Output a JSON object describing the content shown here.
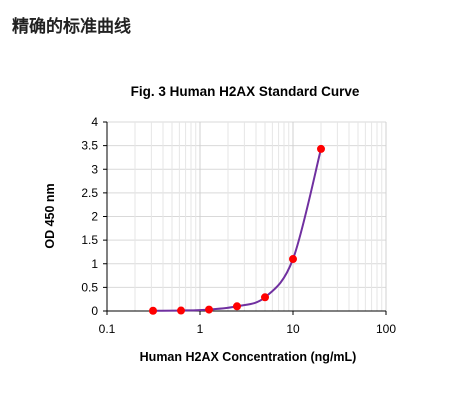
{
  "page": {
    "heading": "精确的标准曲线"
  },
  "chart_data": {
    "type": "scatter",
    "title": "Fig. 3 Human H2AX Standard Curve",
    "xlabel": "Human H2AX Concentration (ng/mL)",
    "ylabel": "OD 450 nm",
    "x_scale": "log",
    "xlim": [
      0.1,
      100
    ],
    "ylim": [
      0,
      4
    ],
    "x_ticks": [
      "0.1",
      "1",
      "10",
      "100"
    ],
    "y_ticks": [
      "0",
      "0.5",
      "1",
      "1.5",
      "2",
      "2.5",
      "3",
      "3.5",
      "4"
    ],
    "grid": true,
    "legend": "none",
    "series": [
      {
        "x": [
          0.3125,
          0.625,
          1.25,
          2.5,
          5,
          10,
          20
        ],
        "y": [
          0.005,
          0.01,
          0.03,
          0.1,
          0.29,
          1.1,
          3.43
        ],
        "marker_color": "#ff0000",
        "curve_color": "#7030a0"
      }
    ]
  }
}
